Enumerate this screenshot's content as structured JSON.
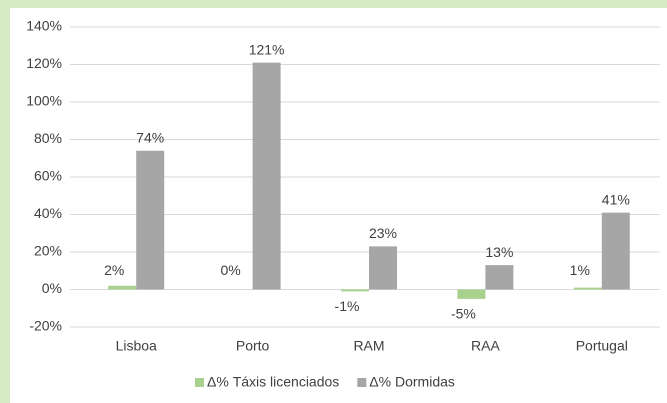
{
  "chart_data": {
    "type": "bar",
    "categories": [
      "Lisboa",
      "Porto",
      "RAM",
      "RAA",
      "Portugal"
    ],
    "series": [
      {
        "name": "Δ% Táxis licenciados",
        "color": "#a9d18e",
        "values": [
          2,
          0,
          -1,
          -5,
          1
        ],
        "value_labels": [
          "2%",
          "0%",
          "-1%",
          "-5%",
          "1%"
        ]
      },
      {
        "name": "Δ% Dormidas",
        "color": "#a6a6a6",
        "values": [
          74,
          121,
          23,
          13,
          41
        ],
        "value_labels": [
          "74%",
          "121%",
          "23%",
          "13%",
          "41%"
        ]
      }
    ],
    "ylim": [
      -20,
      140
    ],
    "yticks": [
      {
        "value": -20,
        "label": "-20%"
      },
      {
        "value": 0,
        "label": "0%"
      },
      {
        "value": 20,
        "label": "20%"
      },
      {
        "value": 40,
        "label": "40%"
      },
      {
        "value": 60,
        "label": "60%"
      },
      {
        "value": 80,
        "label": "80%"
      },
      {
        "value": 100,
        "label": "100%"
      },
      {
        "value": 120,
        "label": "120%"
      },
      {
        "value": 140,
        "label": "140%"
      }
    ],
    "grid": true,
    "legend": "bottom"
  }
}
